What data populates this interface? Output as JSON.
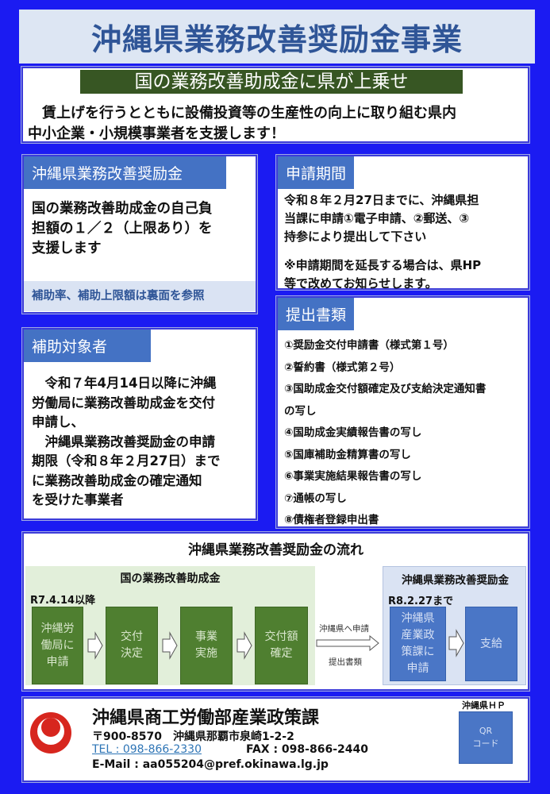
{
  "title": "沖縄県業務改善奨励金事業",
  "banner": {
    "label": "国の業務改善助成金に県が上乗せ",
    "lines": [
      "　賃上げを行うとともに設備投資等の生産性の向上に取り組む県内",
      "中小企業・小規模事業者を支援します！"
    ]
  },
  "incentive": {
    "heading": "沖縄県業務改善奨励金",
    "lines": [
      "国の業務改善助成金の自己負",
      "担額の１／２（上限あり）を",
      "支援します"
    ],
    "note": "補助率、補助上限額は裏面を参照"
  },
  "period": {
    "heading": "申請期間",
    "lines": [
      "令和８年２月27日までに、沖縄県担",
      "当課に申請①電子申請、②郵送、③",
      "持参により提出して下さい"
    ],
    "note_lines": [
      "※申請期間を延長する場合は、県HP",
      "等で改めてお知らせします。"
    ]
  },
  "documents": {
    "heading": "提出書類",
    "items": [
      "①奨励金交付申請書（様式第１号）",
      "②誓約書（様式第２号）",
      "③国助成金交付額確定及び支給決定通知書",
      "の写し",
      "④国助成金実績報告書の写し",
      "⑤国庫補助金精算書の写し",
      "⑥事業実施結果報告書の写し",
      "⑦通帳の写し",
      "⑧債権者登録申出書"
    ]
  },
  "eligible": {
    "heading": "補助対象者",
    "lines": [
      "　令和７年4月14日以降に沖縄",
      "労働局に業務改善助成金を交付",
      "申請し、",
      "　沖縄県業務改善奨励金の申請",
      "期限（令和８年２月27日）まで",
      "に業務改善助成金の確定通知",
      "を受けた事業者"
    ]
  },
  "flow": {
    "title": "沖縄県業務改善奨励金の流れ",
    "national": {
      "heading": "国の業務改善助成金",
      "date": "R7.4.14以降",
      "steps": [
        "沖縄労\n働局に\n申請",
        "交付\n決定",
        "事業\n実施",
        "交付額\n確定"
      ]
    },
    "transfer": {
      "top": "沖縄県へ申請",
      "bottom": "提出書類"
    },
    "prefecture": {
      "heading": "沖縄県業務改善奨励金",
      "date": "R8.2.27まで",
      "steps": [
        "沖縄県\n産業政\n策課に\n申請",
        "支給"
      ]
    }
  },
  "contact": {
    "org": "沖縄県商工労働部産業政策課",
    "address": "〒900-8570　沖縄県那覇市泉崎1-2-2",
    "tel": "TEL : 098-866-2330",
    "fax": "FAX : 098-866-2440",
    "email": "E-Mail : aa055204@pref.okinawa.lg.jp",
    "hp_label": "沖縄県ＨＰ",
    "qr": "QR\nコード"
  },
  "colors": {
    "background": "#1b1bf2",
    "tab": "#4472c4",
    "banner_green": "#375623",
    "title_text": "#2f5597"
  }
}
